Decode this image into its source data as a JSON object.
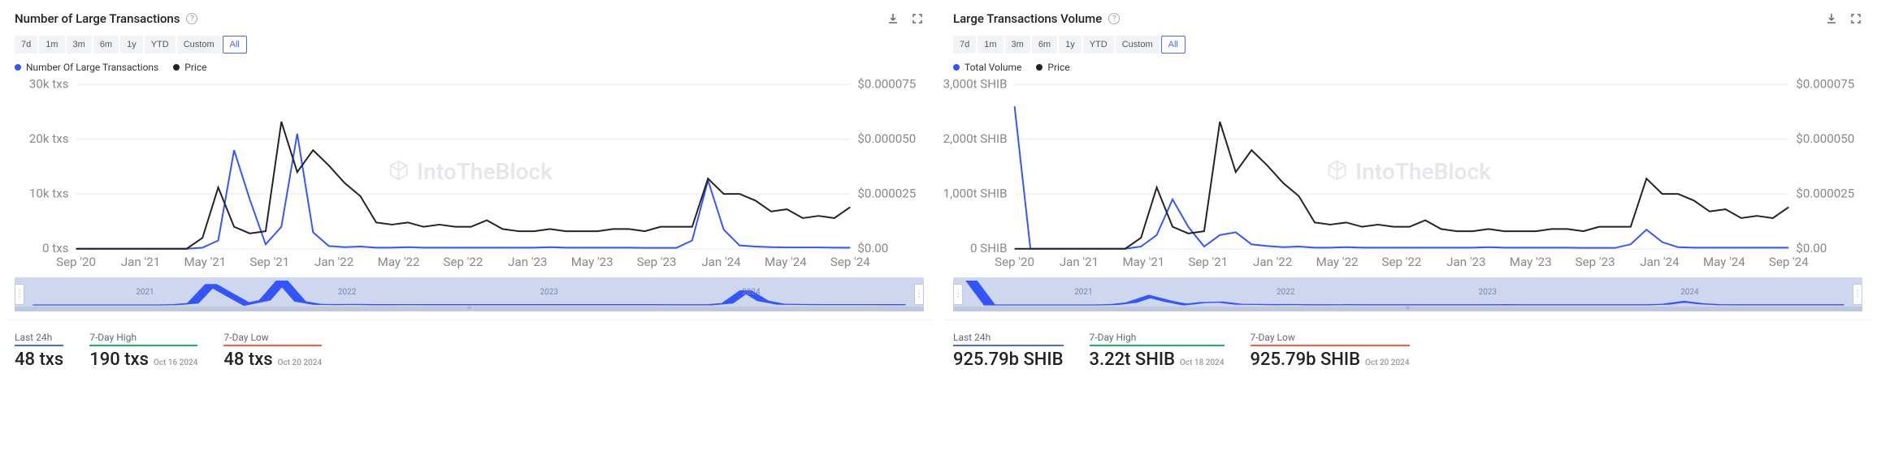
{
  "watermark_text": "IntoTheBlock",
  "colors": {
    "primary_line": "#3355ff",
    "price_line": "#222222",
    "grid": "#eef0f2",
    "brush_bg": "#cfd7ef",
    "brush_line": "#3355ff",
    "accent_blue": "#4a66ff",
    "accent_green": "#1fb36a",
    "accent_red": "#ff5a3d"
  },
  "range_buttons": [
    "7d",
    "1m",
    "3m",
    "6m",
    "1y",
    "YTD",
    "Custom",
    "All"
  ],
  "range_active_index": 7,
  "x_ticks": [
    "Sep '20",
    "Jan '21",
    "May '21",
    "Sep '21",
    "Jan '22",
    "May '22",
    "Sep '22",
    "Jan '23",
    "May '23",
    "Sep '23",
    "Jan '24",
    "May '24",
    "Sep '24"
  ],
  "brush_years": [
    "2021",
    "2022",
    "2023",
    "2024"
  ],
  "panels": [
    {
      "title": "Number of Large Transactions",
      "legend": [
        {
          "label": "Number Of Large Transactions",
          "color": "#3355ff"
        },
        {
          "label": "Price",
          "color": "#222222"
        }
      ],
      "y_left": {
        "ticks": [
          "0 txs",
          "10k txs",
          "20k txs",
          "30k txs"
        ],
        "max": 30000
      },
      "y_right": {
        "ticks": [
          "$0.00",
          "$0.000025",
          "$0.000050",
          "$0.000075"
        ],
        "max": 7.5e-05
      },
      "series_primary": [
        0,
        0,
        0,
        0,
        0,
        0,
        0,
        0,
        200,
        1500,
        18000,
        9000,
        800,
        4000,
        21000,
        3000,
        500,
        300,
        400,
        200,
        200,
        300,
        200,
        200,
        200,
        200,
        200,
        200,
        200,
        200,
        300,
        200,
        200,
        200,
        200,
        200,
        150,
        150,
        150,
        1500,
        12500,
        3500,
        600,
        400,
        300,
        250,
        250,
        250,
        200,
        200
      ],
      "series_price": [
        0,
        0,
        0,
        0,
        0,
        0,
        0,
        0,
        5e-06,
        2.8e-05,
        1e-05,
        7e-06,
        8e-06,
        5.8e-05,
        3.5e-05,
        4.5e-05,
        3.8e-05,
        3e-05,
        2.4e-05,
        1.2e-05,
        1.1e-05,
        1.2e-05,
        1e-05,
        1.1e-05,
        1e-05,
        1e-05,
        1.3e-05,
        9e-06,
        8e-06,
        8e-06,
        9e-06,
        8e-06,
        8e-06,
        8e-06,
        9e-06,
        9e-06,
        8e-06,
        1e-05,
        1e-05,
        1e-05,
        3.2e-05,
        2.5e-05,
        2.5e-05,
        2.2e-05,
        1.7e-05,
        1.8e-05,
        1.4e-05,
        1.5e-05,
        1.4e-05,
        1.9e-05
      ],
      "stats": {
        "last24": {
          "label": "Last 24h",
          "value": "48 txs"
        },
        "high": {
          "label": "7-Day High",
          "value": "190 txs",
          "date": "Oct 16 2024"
        },
        "low": {
          "label": "7-Day Low",
          "value": "48 txs",
          "date": "Oct 20 2024"
        }
      }
    },
    {
      "title": "Large Transactions Volume",
      "legend": [
        {
          "label": "Total Volume",
          "color": "#3355ff"
        },
        {
          "label": "Price",
          "color": "#222222"
        }
      ],
      "y_left": {
        "ticks": [
          "0 SHIB",
          "1,000t SHIB",
          "2,000t SHIB",
          "3,000t SHIB"
        ],
        "max": 3000
      },
      "y_right": {
        "ticks": [
          "$0.00",
          "$0.000025",
          "$0.000050",
          "$0.000075"
        ],
        "max": 7.5e-05
      },
      "series_primary": [
        2600,
        0,
        0,
        0,
        0,
        0,
        0,
        0,
        40,
        250,
        900,
        400,
        40,
        250,
        300,
        80,
        50,
        30,
        40,
        20,
        20,
        30,
        20,
        20,
        20,
        20,
        20,
        20,
        20,
        20,
        30,
        20,
        20,
        20,
        20,
        20,
        15,
        15,
        15,
        80,
        350,
        120,
        30,
        20,
        20,
        20,
        20,
        20,
        20,
        20
      ],
      "series_price": [
        0,
        0,
        0,
        0,
        0,
        0,
        0,
        0,
        5e-06,
        2.8e-05,
        1e-05,
        7e-06,
        8e-06,
        5.8e-05,
        3.5e-05,
        4.5e-05,
        3.8e-05,
        3e-05,
        2.4e-05,
        1.2e-05,
        1.1e-05,
        1.2e-05,
        1e-05,
        1.1e-05,
        1e-05,
        1e-05,
        1.3e-05,
        9e-06,
        8e-06,
        8e-06,
        9e-06,
        8e-06,
        8e-06,
        8e-06,
        9e-06,
        9e-06,
        8e-06,
        1e-05,
        1e-05,
        1e-05,
        3.2e-05,
        2.5e-05,
        2.5e-05,
        2.2e-05,
        1.7e-05,
        1.8e-05,
        1.4e-05,
        1.5e-05,
        1.4e-05,
        1.9e-05
      ],
      "stats": {
        "last24": {
          "label": "Last 24h",
          "value": "925.79b SHIB"
        },
        "high": {
          "label": "7-Day High",
          "value": "3.22t SHIB",
          "date": "Oct 18 2024"
        },
        "low": {
          "label": "7-Day Low",
          "value": "925.79b SHIB",
          "date": "Oct 20 2024"
        }
      }
    }
  ]
}
